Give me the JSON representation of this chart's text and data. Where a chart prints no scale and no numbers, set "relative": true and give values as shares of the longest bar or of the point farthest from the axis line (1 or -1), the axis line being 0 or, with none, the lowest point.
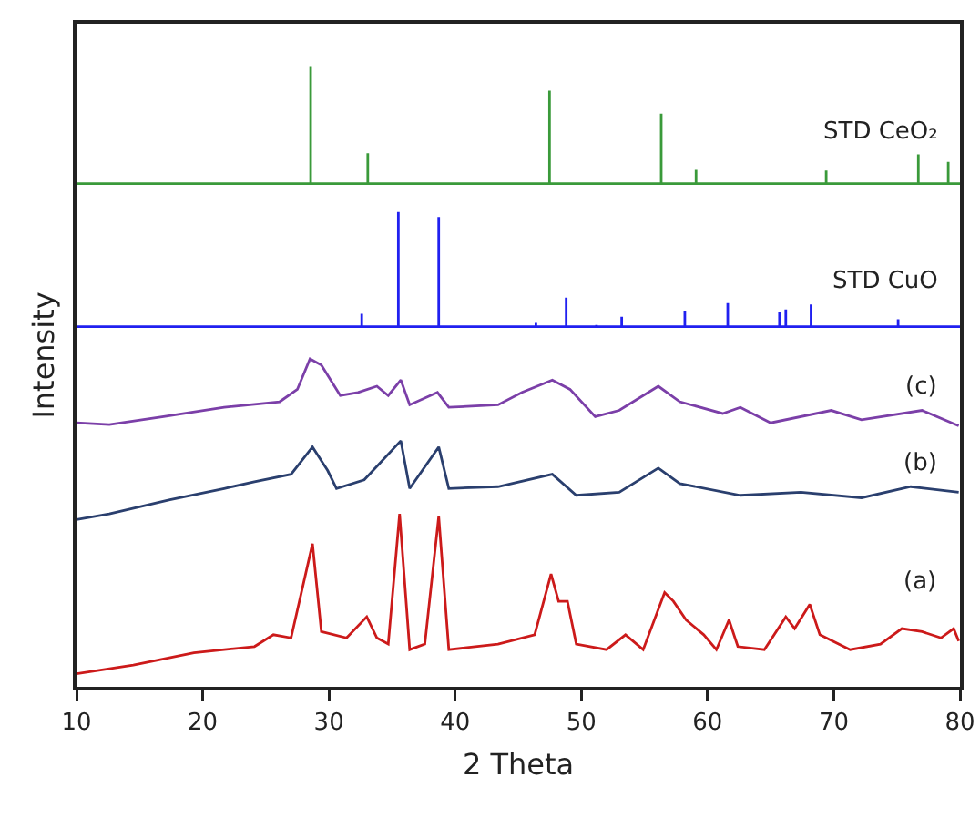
{
  "chart_data": {
    "type": "line",
    "relative": true,
    "xlabel": "2 Theta",
    "ylabel": "Intensity",
    "xlim": [
      10,
      80
    ],
    "xticks": [
      10,
      20,
      30,
      40,
      50,
      60,
      70,
      80
    ],
    "grid": false,
    "legend": false,
    "marker": "none",
    "line_style": "solid",
    "series": [
      {
        "name": "STD CeO₂",
        "color": "#3a9a3a",
        "x": [
          10,
          28.55,
          28.55,
          28.55,
          33.08,
          33.08,
          33.08,
          47.48,
          47.48,
          47.48,
          56.33,
          56.33,
          56.33,
          59.09,
          59.09,
          59.09,
          69.4,
          69.4,
          69.4,
          76.7,
          76.7,
          76.7,
          79.07,
          79.07,
          79.07,
          80
        ],
        "values": [
          0.812,
          0.812,
          1,
          0.812,
          0.812,
          0.861,
          0.812,
          0.812,
          0.962,
          0.812,
          0.812,
          0.925,
          0.812,
          0.812,
          0.834,
          0.812,
          0.812,
          0.833,
          0.812,
          0.812,
          0.859,
          0.812,
          0.812,
          0.847,
          0.812,
          0.812
        ]
      },
      {
        "name": "STD CuO",
        "color": "#2020f0",
        "x": [
          10,
          32.6,
          32.6,
          32.6,
          35.5,
          35.5,
          35.5,
          38.7,
          38.7,
          38.7,
          46.4,
          46.4,
          46.4,
          48.8,
          48.8,
          48.8,
          51.2,
          51.2,
          51.2,
          53.2,
          53.2,
          53.2,
          58.2,
          58.2,
          58.2,
          61.6,
          61.6,
          61.6,
          65.7,
          65.7,
          65.7,
          66.2,
          66.2,
          66.2,
          68.2,
          68.2,
          68.2,
          75.1,
          75.1,
          75.1,
          80
        ],
        "values": [
          0.581,
          0.581,
          0.602,
          0.581,
          0.581,
          0.766,
          0.581,
          0.581,
          0.758,
          0.581,
          0.581,
          0.587,
          0.581,
          0.581,
          0.628,
          0.581,
          0.581,
          0.584,
          0.581,
          0.581,
          0.597,
          0.581,
          0.581,
          0.607,
          0.581,
          0.581,
          0.619,
          0.581,
          0.581,
          0.604,
          0.581,
          0.581,
          0.609,
          0.581,
          0.581,
          0.617,
          0.581,
          0.581,
          0.593,
          0.581,
          0.581
        ]
      },
      {
        "name": "(c)",
        "color": "#7b3fa8",
        "x": [
          10,
          12.6,
          16.9,
          21.7,
          26.1,
          27.5,
          28.5,
          29.4,
          30.9,
          32.3,
          33.8,
          34.7,
          35.7,
          36.4,
          38.6,
          39.5,
          43.4,
          45.3,
          47.7,
          49.1,
          51.1,
          53.0,
          56.1,
          57.8,
          61.2,
          62.6,
          65.0,
          69.8,
          72.2,
          77.0,
          79.9
        ],
        "values": [
          0.426,
          0.423,
          0.436,
          0.451,
          0.46,
          0.48,
          0.529,
          0.519,
          0.47,
          0.475,
          0.485,
          0.47,
          0.495,
          0.455,
          0.475,
          0.451,
          0.455,
          0.475,
          0.495,
          0.48,
          0.436,
          0.446,
          0.485,
          0.46,
          0.441,
          0.451,
          0.426,
          0.446,
          0.431,
          0.446,
          0.421
        ]
      },
      {
        "name": "(b)",
        "color": "#2a3f6e",
        "x": [
          10,
          12.6,
          17.4,
          21.7,
          24.1,
          27.0,
          28.7,
          29.9,
          30.6,
          32.8,
          35.7,
          36.4,
          38.7,
          39.5,
          43.4,
          47.7,
          49.6,
          53.0,
          56.1,
          57.8,
          62.6,
          67.4,
          72.2,
          76.1,
          79.9
        ],
        "values": [
          0.27,
          0.279,
          0.302,
          0.32,
          0.331,
          0.343,
          0.387,
          0.349,
          0.32,
          0.334,
          0.397,
          0.32,
          0.387,
          0.32,
          0.323,
          0.343,
          0.309,
          0.314,
          0.353,
          0.328,
          0.309,
          0.314,
          0.305,
          0.323,
          0.314
        ]
      },
      {
        "name": "(a)",
        "color": "#cc1a1a",
        "x": [
          10,
          14.5,
          19.3,
          24.1,
          25.6,
          27.0,
          28.7,
          29.4,
          31.4,
          33.0,
          33.8,
          34.7,
          35.6,
          36.4,
          37.6,
          38.7,
          39.5,
          43.4,
          46.3,
          47.6,
          48.2,
          48.9,
          49.6,
          52.0,
          53.5,
          54.9,
          56.6,
          57.3,
          58.3,
          59.7,
          60.7,
          61.7,
          62.4,
          64.5,
          66.2,
          66.9,
          68.1,
          68.9,
          71.3,
          73.7,
          75.4,
          77.0,
          78.5,
          79.5,
          79.9
        ],
        "values": [
          0.021,
          0.035,
          0.055,
          0.065,
          0.084,
          0.079,
          0.231,
          0.089,
          0.079,
          0.113,
          0.079,
          0.069,
          0.279,
          0.06,
          0.069,
          0.275,
          0.06,
          0.069,
          0.084,
          0.182,
          0.138,
          0.138,
          0.069,
          0.06,
          0.084,
          0.06,
          0.152,
          0.138,
          0.108,
          0.084,
          0.06,
          0.108,
          0.065,
          0.06,
          0.113,
          0.094,
          0.133,
          0.084,
          0.06,
          0.069,
          0.094,
          0.089,
          0.079,
          0.094,
          0.074
        ]
      }
    ]
  }
}
